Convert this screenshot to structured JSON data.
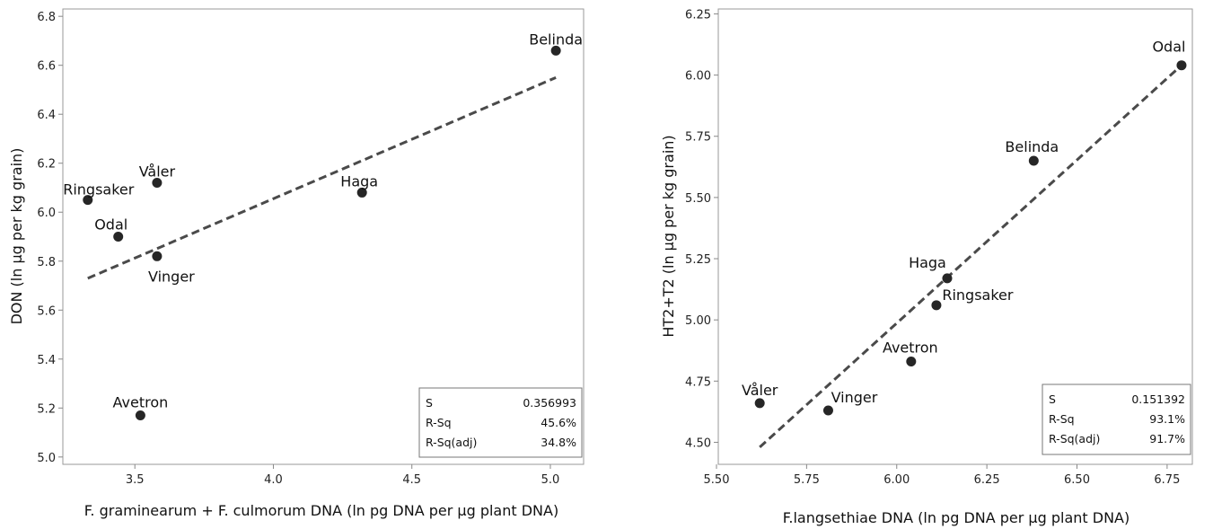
{
  "chart_data": [
    {
      "type": "scatter",
      "xlabel": "F. graminearum + F. culmorum DNA (ln pg DNA per µg plant DNA)",
      "ylabel": "DON (ln µg per kg grain)",
      "xlim": [
        3.24,
        5.12
      ],
      "ylim": [
        4.97,
        6.83
      ],
      "xticks": [
        "3.5",
        "4.0",
        "4.5",
        "5.0"
      ],
      "xtick_values": [
        3.5,
        4.0,
        4.5,
        5.0
      ],
      "yticks": [
        "5.0",
        "5.2",
        "5.4",
        "5.6",
        "5.8",
        "6.0",
        "6.2",
        "6.4",
        "6.6",
        "6.8"
      ],
      "ytick_values": [
        5.0,
        5.2,
        5.4,
        5.6,
        5.8,
        6.0,
        6.2,
        6.4,
        6.6,
        6.8
      ],
      "points": [
        {
          "label": "Belinda",
          "x": 5.02,
          "y": 6.66
        },
        {
          "label": "Våler",
          "x": 3.58,
          "y": 6.12
        },
        {
          "label": "Ringsaker",
          "x": 3.33,
          "y": 6.05
        },
        {
          "label": "Haga",
          "x": 4.32,
          "y": 6.08
        },
        {
          "label": "Odal",
          "x": 3.44,
          "y": 5.9
        },
        {
          "label": "Vinger",
          "x": 3.58,
          "y": 5.82
        },
        {
          "label": "Avetron",
          "x": 3.52,
          "y": 5.17
        }
      ],
      "fit_line": {
        "x": [
          3.33,
          5.02
        ],
        "y": [
          5.73,
          6.55
        ]
      },
      "grid": false,
      "stats": [
        {
          "name": "S",
          "value": "0.356993"
        },
        {
          "name": "R-Sq",
          "value": "45.6%"
        },
        {
          "name": "R-Sq(adj)",
          "value": "34.8%"
        }
      ]
    },
    {
      "type": "scatter",
      "xlabel": "F.langsethiae DNA (ln pg DNA per µg plant DNA)",
      "ylabel": "HT2+T2 (ln µg per kg grain)",
      "xlim": [
        5.505,
        6.82
      ],
      "ylim": [
        4.41,
        6.27
      ],
      "xticks": [
        "5.50",
        "5.75",
        "6.00",
        "6.25",
        "6.50",
        "6.75"
      ],
      "xtick_values": [
        5.5,
        5.75,
        6.0,
        6.25,
        6.5,
        6.75
      ],
      "yticks": [
        "4.50",
        "4.75",
        "5.00",
        "5.25",
        "5.50",
        "5.75",
        "6.00",
        "6.25"
      ],
      "ytick_values": [
        4.5,
        4.75,
        5.0,
        5.25,
        5.5,
        5.75,
        6.0,
        6.25
      ],
      "points": [
        {
          "label": "Odal",
          "x": 6.79,
          "y": 6.04
        },
        {
          "label": "Belinda",
          "x": 6.38,
          "y": 5.65
        },
        {
          "label": "Haga",
          "x": 6.14,
          "y": 5.17
        },
        {
          "label": "Ringsaker",
          "x": 6.11,
          "y": 5.06
        },
        {
          "label": "Avetron",
          "x": 6.04,
          "y": 4.83
        },
        {
          "label": "Våler",
          "x": 5.62,
          "y": 4.66
        },
        {
          "label": "Vinger",
          "x": 5.81,
          "y": 4.63
        }
      ],
      "fit_line": {
        "x": [
          5.62,
          6.79
        ],
        "y": [
          4.48,
          6.04
        ]
      },
      "grid": false,
      "stats": [
        {
          "name": "S",
          "value": "0.151392"
        },
        {
          "name": "R-Sq",
          "value": "93.1%"
        },
        {
          "name": "R-Sq(adj)",
          "value": "91.7%"
        }
      ]
    }
  ]
}
